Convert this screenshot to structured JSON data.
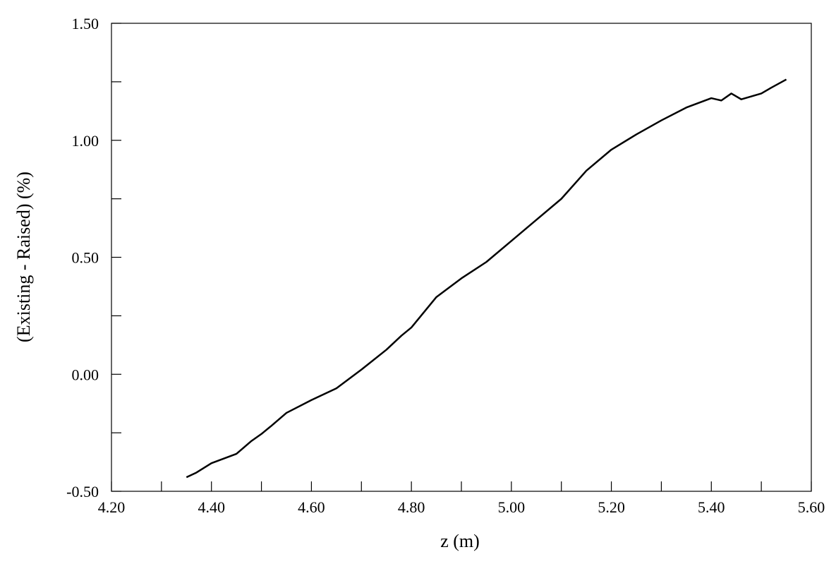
{
  "chart_data": {
    "type": "line",
    "x_label": "z (m)",
    "y_label": "(Existing - Raised) (%)",
    "x": [
      4.35,
      4.37,
      4.4,
      4.45,
      4.48,
      4.5,
      4.52,
      4.55,
      4.6,
      4.65,
      4.7,
      4.75,
      4.78,
      4.8,
      4.85,
      4.9,
      4.95,
      5.0,
      5.05,
      5.1,
      5.15,
      5.2,
      5.25,
      5.3,
      5.35,
      5.4,
      5.42,
      5.44,
      5.46,
      5.5,
      5.52,
      5.55
    ],
    "series": [
      {
        "color": "#000000",
        "values": [
          -0.44,
          -0.42,
          -0.38,
          -0.34,
          -0.285,
          -0.255,
          -0.22,
          -0.165,
          -0.11,
          -0.06,
          0.02,
          0.105,
          0.165,
          0.2,
          0.33,
          0.41,
          0.48,
          0.57,
          0.66,
          0.75,
          0.87,
          0.96,
          1.025,
          1.085,
          1.14,
          1.18,
          1.17,
          1.2,
          1.175,
          1.2,
          1.225,
          1.26
        ]
      }
    ],
    "xlim": [
      4.2,
      5.6
    ],
    "xticks": [
      {
        "value": 4.2,
        "label": "4.20"
      },
      {
        "value": 4.4,
        "label": "4.40"
      },
      {
        "value": 4.6,
        "label": "4.60"
      },
      {
        "value": 4.8,
        "label": "4.80"
      },
      {
        "value": 5.0,
        "label": "5.00"
      },
      {
        "value": 5.2,
        "label": "5.20"
      },
      {
        "value": 5.4,
        "label": "5.40"
      },
      {
        "value": 5.6,
        "label": "5.60"
      }
    ],
    "ylim": [
      -0.5,
      1.5
    ],
    "yticks": [
      {
        "value": -0.5,
        "label": "-0.50"
      },
      {
        "value": 0,
        "label": "0.00"
      },
      {
        "value": 0.5,
        "label": "0.50"
      },
      {
        "value": 1.0,
        "label": "1.00"
      },
      {
        "value": 1.5,
        "label": "1.50"
      }
    ],
    "grid": false
  }
}
